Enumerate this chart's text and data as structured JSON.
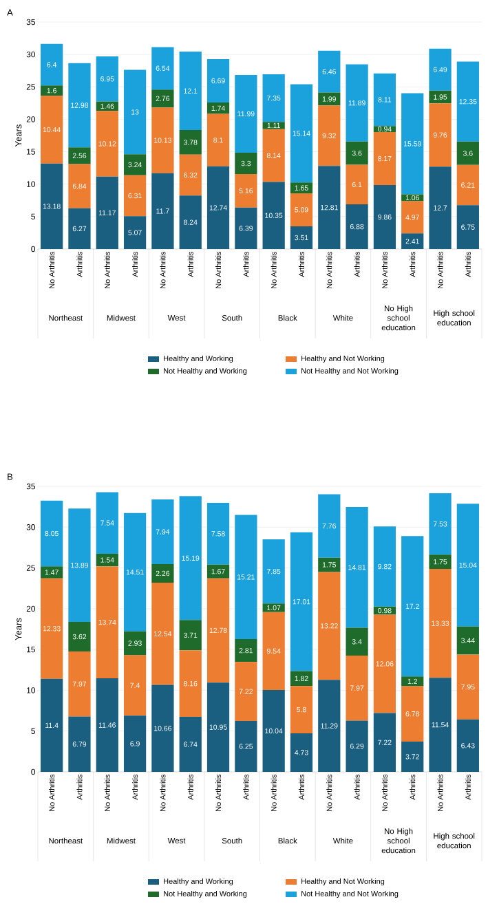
{
  "chart_data": [
    {
      "type": "bar",
      "title": "A",
      "ylabel": "Years",
      "stacked": true,
      "data_labels": true,
      "legend": "bottom",
      "grid": "y",
      "ylim": [
        0,
        35
      ],
      "yticks": [
        0,
        5,
        10,
        15,
        20,
        25,
        30,
        35
      ],
      "categories": [
        "No Arthritis",
        "Arthritis",
        "No Arthritis",
        "Arthritis",
        "No Arthritis",
        "Arthritis",
        "No Arthritis",
        "Arthritis",
        "No Arthritis",
        "Arthritis",
        "No Arthritis",
        "Arthritis",
        "No Arthritis",
        "Arthritis",
        "No Arthritis",
        "Arthritis"
      ],
      "annotations": [
        "Northeast",
        "Midwest",
        "West",
        "South",
        "Black",
        "White",
        "No High school education",
        "High school education"
      ],
      "series": [
        {
          "name": "Healthy and Working",
          "color": "#1a5e80",
          "values": [
            13.18,
            6.27,
            11.17,
            5.07,
            11.7,
            8.24,
            12.74,
            6.39,
            10.35,
            3.51,
            12.81,
            6.88,
            9.86,
            2.41,
            12.7,
            6.75
          ]
        },
        {
          "name": "Healthy and Not Working",
          "color": "#ed7d31",
          "values": [
            10.44,
            6.84,
            10.12,
            6.31,
            10.13,
            6.32,
            8.1,
            5.16,
            8.14,
            5.09,
            9.32,
            6.1,
            8.17,
            4.97,
            9.76,
            6.21
          ]
        },
        {
          "name": "Not Healthy and Working",
          "color": "#1f6b2b",
          "values": [
            1.6,
            2.56,
            1.46,
            3.24,
            2.76,
            3.78,
            1.74,
            3.3,
            1.11,
            1.65,
            1.99,
            3.6,
            0.94,
            1.06,
            1.95,
            3.6
          ]
        },
        {
          "name": "Not Healthy and Not Working",
          "color": "#1ba1dc",
          "values": [
            6.4,
            12.98,
            6.95,
            13,
            6.54,
            12.1,
            6.69,
            11.99,
            7.35,
            15.14,
            6.46,
            11.89,
            8.11,
            15.59,
            6.49,
            12.35
          ]
        }
      ]
    },
    {
      "type": "bar",
      "title": "B",
      "ylabel": "Years",
      "stacked": true,
      "data_labels": true,
      "legend": "bottom",
      "grid": "y",
      "ylim": [
        0,
        35
      ],
      "yticks": [
        0,
        5,
        10,
        15,
        20,
        25,
        30,
        35
      ],
      "categories": [
        "No Arthritis",
        "Arthritis",
        "No Arthritis",
        "Arthritis",
        "No Arthritis",
        "Arthritis",
        "No Arthritis",
        "Arthritis",
        "No Arthritis",
        "Arthritis",
        "No Arthritis",
        "Arthritis",
        "No Arthritis",
        "Arthritis",
        "No Arthritis",
        "Arthritis"
      ],
      "annotations": [
        "Northeast",
        "Midwest",
        "West",
        "South",
        "Black",
        "White",
        "No High school education",
        "High school education"
      ],
      "series": [
        {
          "name": "Healthy and Working",
          "color": "#1a5e80",
          "values": [
            11.4,
            6.79,
            11.46,
            6.9,
            10.66,
            6.74,
            10.95,
            6.25,
            10.04,
            4.73,
            11.29,
            6.29,
            7.22,
            3.72,
            11.54,
            6.43
          ]
        },
        {
          "name": "Healthy and Not Working",
          "color": "#ed7d31",
          "values": [
            12.33,
            7.97,
            13.74,
            7.4,
            12.54,
            8.16,
            12.78,
            7.22,
            9.54,
            5.8,
            13.22,
            7.97,
            12.06,
            6.78,
            13.33,
            7.95
          ]
        },
        {
          "name": "Not Healthy and Working",
          "color": "#1f6b2b",
          "values": [
            1.47,
            3.62,
            1.54,
            2.93,
            2.26,
            3.71,
            1.67,
            2.81,
            1.07,
            1.82,
            1.75,
            3.4,
            0.98,
            1.2,
            1.75,
            3.44
          ]
        },
        {
          "name": "Not Healthy and Not Working",
          "color": "#1ba1dc",
          "values": [
            8.05,
            13.89,
            7.54,
            14.51,
            7.94,
            15.19,
            7.58,
            15.21,
            7.85,
            17.01,
            7.76,
            14.81,
            9.82,
            17.2,
            7.53,
            15.04
          ]
        }
      ]
    }
  ]
}
